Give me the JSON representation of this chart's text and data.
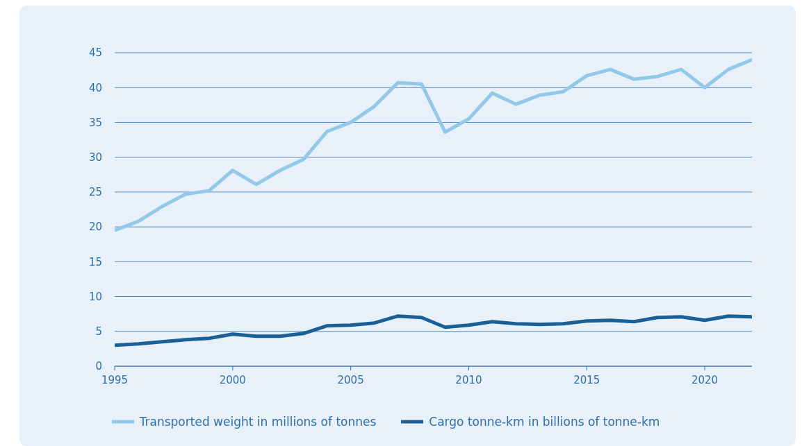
{
  "chart_data": {
    "type": "line",
    "x": [
      1995,
      1996,
      1997,
      1998,
      1999,
      2000,
      2001,
      2002,
      2003,
      2004,
      2005,
      2006,
      2007,
      2008,
      2009,
      2010,
      2011,
      2012,
      2013,
      2014,
      2015,
      2016,
      2017,
      2018,
      2019,
      2020,
      2021,
      2022
    ],
    "series": [
      {
        "name": "Transported weight in millions of tonnes",
        "color": "#93c9e8",
        "values": [
          19.5,
          20.8,
          22.9,
          24.7,
          25.2,
          28.1,
          26.1,
          28.1,
          29.7,
          33.7,
          35.0,
          37.3,
          40.7,
          40.5,
          33.6,
          35.5,
          39.2,
          37.6,
          38.9,
          39.4,
          41.7,
          42.6,
          41.2,
          41.6,
          42.6,
          40.0,
          42.6,
          44.0
        ]
      },
      {
        "name": "Cargo tonne-km in billions of tonne-km",
        "color": "#1a5f96",
        "values": [
          3.0,
          3.2,
          3.5,
          3.8,
          4.0,
          4.6,
          4.3,
          4.3,
          4.7,
          5.8,
          5.9,
          6.2,
          7.2,
          7.0,
          5.6,
          5.9,
          6.4,
          6.1,
          6.0,
          6.1,
          6.5,
          6.6,
          6.4,
          7.0,
          7.1,
          6.6,
          7.2,
          7.1
        ]
      }
    ],
    "xlim": [
      1995,
      2022
    ],
    "xticks": [
      1995,
      2000,
      2005,
      2010,
      2015,
      2020
    ],
    "ylim": [
      0,
      45
    ],
    "yticks": [
      0,
      5,
      10,
      15,
      20,
      25,
      30,
      35,
      40,
      45
    ],
    "grid": "y",
    "legend": "bottom",
    "marker": "none",
    "line_style": "solid"
  }
}
